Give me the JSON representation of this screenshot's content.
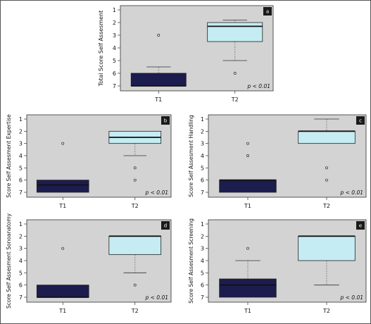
{
  "colors": {
    "page_bg": "#ffffff",
    "outer_border": "#555555",
    "plot_bg": "#d3d3d3",
    "t1_fill": "#1c1c4e",
    "t2_fill": "#c5ecf2",
    "median": "#111111",
    "whisker": "#777777",
    "badge_bg": "#1a1a1a"
  },
  "chart_data": [
    {
      "type": "box",
      "panel": "a",
      "ylabel": "Total Score Self Assesment",
      "ylim": [
        7,
        1
      ],
      "yticks": [
        1,
        2,
        3,
        4,
        5,
        6,
        7
      ],
      "categories": [
        "T1",
        "T2"
      ],
      "annotation": "p < 0.01",
      "boxes": [
        {
          "name": "T1",
          "whisker_top": 5.5,
          "q1": 6,
          "median": 7,
          "q3": 7,
          "whisker_bottom": 7,
          "outliers": [
            3
          ]
        },
        {
          "name": "T2",
          "whisker_top": 1.8,
          "q1": 2,
          "median": 2.3,
          "q3": 3.5,
          "whisker_bottom": 5,
          "outliers": [
            6
          ]
        }
      ]
    },
    {
      "type": "box",
      "panel": "b",
      "ylabel": "Score Self Assesment Expertise",
      "ylim": [
        7,
        1
      ],
      "yticks": [
        1,
        2,
        3,
        4,
        5,
        6,
        7
      ],
      "categories": [
        "T1",
        "T2"
      ],
      "annotation": "p < 0.01",
      "boxes": [
        {
          "name": "T1",
          "whisker_top": 6,
          "q1": 6,
          "median": 6.4,
          "q3": 7,
          "whisker_bottom": 7,
          "outliers": [
            3
          ]
        },
        {
          "name": "T2",
          "whisker_top": 2,
          "q1": 2,
          "median": 2.5,
          "q3": 3,
          "whisker_bottom": 4,
          "outliers": [
            5,
            6
          ]
        }
      ]
    },
    {
      "type": "box",
      "panel": "c",
      "ylabel": "Score Self Assesment Handling",
      "ylim": [
        7,
        1
      ],
      "yticks": [
        1,
        2,
        3,
        4,
        5,
        6,
        7
      ],
      "categories": [
        "T1",
        "T2"
      ],
      "annotation": "p < 0.01",
      "boxes": [
        {
          "name": "T1",
          "whisker_top": 6,
          "q1": 6,
          "median": 6,
          "q3": 7,
          "whisker_bottom": 7,
          "outliers": [
            3,
            4
          ]
        },
        {
          "name": "T2",
          "whisker_top": 1,
          "q1": 2,
          "median": 2,
          "q3": 3,
          "whisker_bottom": 3,
          "outliers": [
            5,
            6
          ]
        }
      ]
    },
    {
      "type": "box",
      "panel": "d",
      "ylabel": "Score Self Assesment Sonoanatomy",
      "ylim": [
        7,
        1
      ],
      "yticks": [
        1,
        2,
        3,
        4,
        5,
        6,
        7
      ],
      "categories": [
        "T1",
        "T2"
      ],
      "annotation": "p < 0.01",
      "boxes": [
        {
          "name": "T1",
          "whisker_top": 6,
          "q1": 6,
          "median": 7,
          "q3": 7,
          "whisker_bottom": 7,
          "outliers": [
            3
          ]
        },
        {
          "name": "T2",
          "whisker_top": 2,
          "q1": 2,
          "median": 2,
          "q3": 3.5,
          "whisker_bottom": 5,
          "outliers": [
            6
          ]
        }
      ]
    },
    {
      "type": "box",
      "panel": "e",
      "ylabel": "Score Self Assesment Screening",
      "ylim": [
        7,
        1
      ],
      "yticks": [
        1,
        2,
        3,
        4,
        5,
        6,
        7
      ],
      "categories": [
        "T1",
        "T2"
      ],
      "annotation": "p < 0.01",
      "boxes": [
        {
          "name": "T1",
          "whisker_top": 4,
          "q1": 5.5,
          "median": 6,
          "q3": 7,
          "whisker_bottom": 7,
          "outliers": [
            3
          ]
        },
        {
          "name": "T2",
          "whisker_top": 2,
          "q1": 2,
          "median": 2,
          "q3": 4,
          "whisker_bottom": 6,
          "outliers": []
        }
      ]
    }
  ]
}
